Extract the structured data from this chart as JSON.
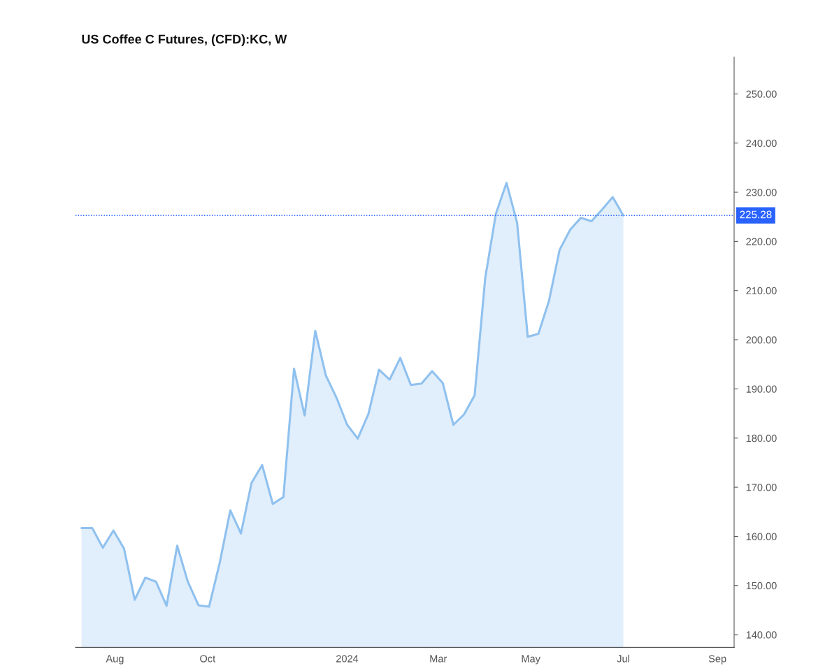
{
  "chart_data": {
    "type": "area",
    "title": "US Coffee C Futures, (CFD):KC, W",
    "x": [
      "2023-07-10",
      "2023-07-17",
      "2023-07-24",
      "2023-07-31",
      "2023-08-07",
      "2023-08-14",
      "2023-08-21",
      "2023-08-28",
      "2023-09-04",
      "2023-09-11",
      "2023-09-18",
      "2023-09-25",
      "2023-10-02",
      "2023-10-09",
      "2023-10-16",
      "2023-10-23",
      "2023-10-30",
      "2023-11-06",
      "2023-11-13",
      "2023-11-20",
      "2023-11-27",
      "2023-12-04",
      "2023-12-11",
      "2023-12-18",
      "2023-12-25",
      "2024-01-01",
      "2024-01-08",
      "2024-01-15",
      "2024-01-22",
      "2024-01-29",
      "2024-02-05",
      "2024-02-12",
      "2024-02-19",
      "2024-02-26",
      "2024-03-04",
      "2024-03-11",
      "2024-03-18",
      "2024-03-25",
      "2024-04-01",
      "2024-04-08",
      "2024-04-15",
      "2024-04-22",
      "2024-04-29",
      "2024-05-06",
      "2024-05-13",
      "2024-05-20",
      "2024-05-27",
      "2024-06-03",
      "2024-06-10",
      "2024-06-17",
      "2024-06-24",
      "2024-07-01"
    ],
    "series": [
      {
        "color": "#8fc1ef",
        "values": [
          161.7,
          161.7,
          157.7,
          161.2,
          157.5,
          147.1,
          151.6,
          150.8,
          145.9,
          158.1,
          150.8,
          146.0,
          145.7,
          154.6,
          165.3,
          160.6,
          170.9,
          174.5,
          166.6,
          168.0,
          194.1,
          184.6,
          201.8,
          192.7,
          188.2,
          182.7,
          179.9,
          184.9,
          193.9,
          191.9,
          196.3,
          190.8,
          191.1,
          193.6,
          191.2,
          182.7,
          184.8,
          188.7,
          212.6,
          225.6,
          231.9,
          223.8,
          200.6,
          201.2,
          207.9,
          218.3,
          222.4,
          224.8,
          224.1,
          226.5,
          229.0,
          225.28
        ]
      }
    ],
    "xlim": [
      "2023-07-06",
      "2024-09-12"
    ],
    "xticks": [
      {
        "value": "2023-08-01",
        "label": "Aug"
      },
      {
        "value": "2023-10-01",
        "label": "Oct"
      },
      {
        "value": "2024-01-01",
        "label": "2024"
      },
      {
        "value": "2024-03-01",
        "label": "Mar"
      },
      {
        "value": "2024-05-01",
        "label": "May"
      },
      {
        "value": "2024-07-01",
        "label": "Jul"
      },
      {
        "value": "2024-09-01",
        "label": "Sep"
      }
    ],
    "ylim": [
      137.4,
      257.5
    ],
    "yticks": [
      {
        "value": 140,
        "label": "140.00"
      },
      {
        "value": 150,
        "label": "150.00"
      },
      {
        "value": 160,
        "label": "160.00"
      },
      {
        "value": 170,
        "label": "170.00"
      },
      {
        "value": 180,
        "label": "180.00"
      },
      {
        "value": 190,
        "label": "190.00"
      },
      {
        "value": 200,
        "label": "200.00"
      },
      {
        "value": 210,
        "label": "210.00"
      },
      {
        "value": 220,
        "label": "220.00"
      },
      {
        "value": 230,
        "label": "230.00"
      },
      {
        "value": 240,
        "label": "240.00"
      },
      {
        "value": 250,
        "label": "250.00"
      }
    ],
    "ref_lines": [
      {
        "axis": "y",
        "value": 225.28,
        "label": "225.28",
        "color": "#2962ff",
        "line_style": "dotted"
      }
    ],
    "grid": false,
    "legend": false
  }
}
